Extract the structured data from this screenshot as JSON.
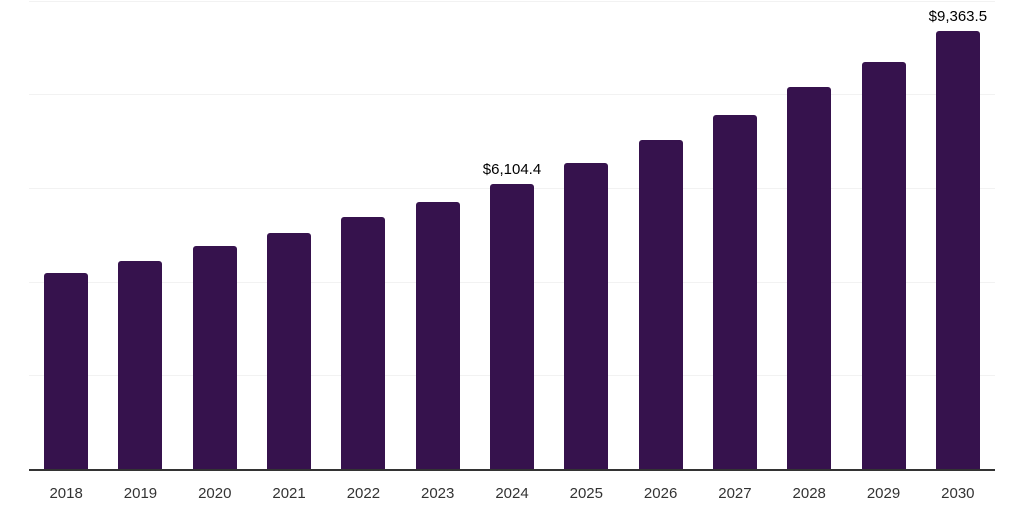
{
  "chart_data": {
    "type": "bar",
    "title": "",
    "xlabel": "",
    "ylabel": "",
    "categories": [
      "2018",
      "2019",
      "2020",
      "2021",
      "2022",
      "2023",
      "2024",
      "2025",
      "2026",
      "2027",
      "2028",
      "2029",
      "2030"
    ],
    "values": [
      4200,
      4450,
      4770,
      5050,
      5380,
      5710,
      6104.4,
      6550,
      7030,
      7560,
      8160,
      8690,
      9363.5
    ],
    "point_labels": [
      "",
      "",
      "",
      "",
      "",
      "",
      "$6,104.4",
      "",
      "",
      "",
      "",
      "",
      "$9,363.5"
    ],
    "ylim": [
      0,
      10000
    ],
    "gridline_values": [
      2000,
      4000,
      6000,
      8000,
      10000
    ],
    "grid_on": true,
    "legend_position": "none",
    "colors": {
      "bar_fill": "#36124d",
      "gridline": "#f2f2f2",
      "axis_line": "#333333",
      "tick_label": "#333333",
      "data_label": "#000000",
      "background": "#ffffff"
    }
  }
}
